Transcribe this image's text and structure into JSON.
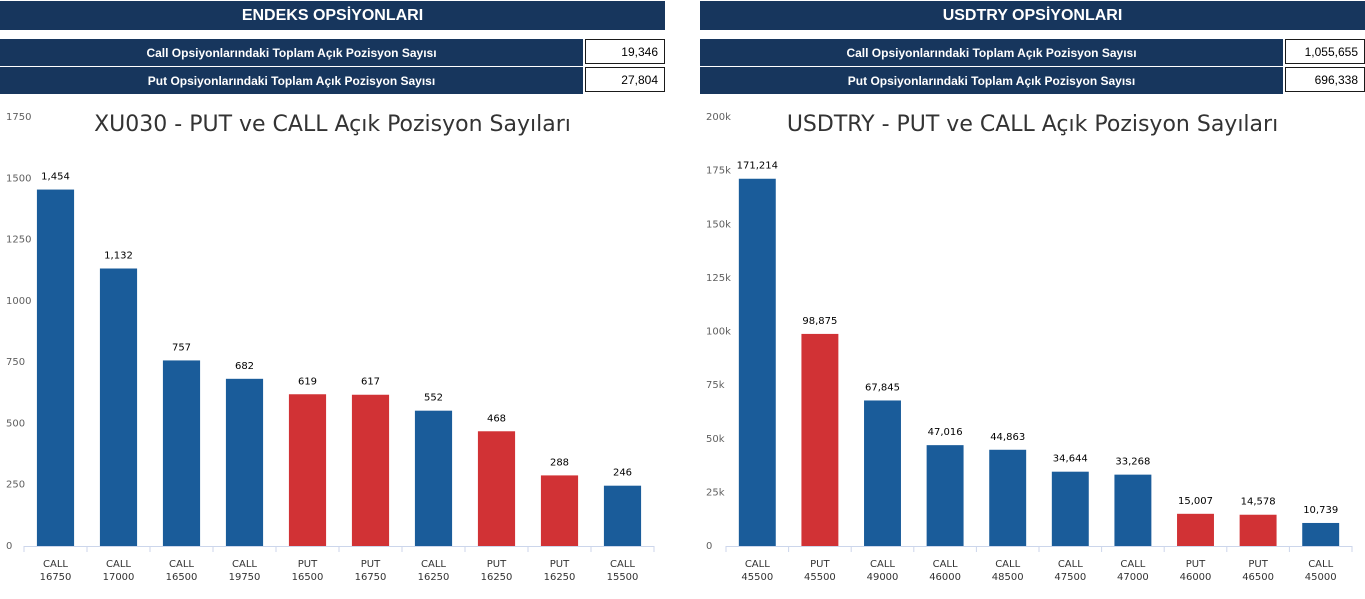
{
  "panels": {
    "left": {
      "header": "ENDEKS OPSİYONLARI",
      "summary": [
        {
          "label": "Call Opsiyonlarındaki Toplam Açık Pozisyon Sayısı",
          "value": "19,346"
        },
        {
          "label": "Put Opsiyonlarındaki Toplam Açık Pozisyon Sayısı",
          "value": "27,804"
        }
      ]
    },
    "right": {
      "header": "USDTRY OPSİYONLARI",
      "summary": [
        {
          "label": "Call Opsiyonlarındaki Toplam Açık Pozisyon Sayısı",
          "value": "1,055,655"
        },
        {
          "label": "Put Opsiyonlarındaki Toplam Açık Pozisyon Sayısı",
          "value": "696,338"
        }
      ]
    }
  },
  "colors": {
    "header_bg": "#17365d",
    "call": "#1a5c9a",
    "put": "#d13235"
  },
  "chart_data": [
    {
      "type": "bar",
      "title": "XU030 - PUT ve CALL Açık Pozisyon Sayıları",
      "categories": [
        [
          "CALL",
          "16750"
        ],
        [
          "CALL",
          "17000"
        ],
        [
          "CALL",
          "16500"
        ],
        [
          "CALL",
          "19750"
        ],
        [
          "PUT",
          "16500"
        ],
        [
          "PUT",
          "16750"
        ],
        [
          "CALL",
          "16250"
        ],
        [
          "PUT",
          "16250"
        ],
        [
          "PUT",
          "16250"
        ],
        [
          "CALL",
          "15500"
        ]
      ],
      "values": [
        1454,
        1132,
        757,
        682,
        619,
        617,
        552,
        468,
        288,
        246
      ],
      "value_labels": [
        "1,454",
        "1,132",
        "757",
        "682",
        "619",
        "617",
        "552",
        "468",
        "288",
        "246"
      ],
      "ylim": [
        0,
        1750
      ],
      "yticks": [
        0,
        250,
        500,
        750,
        1000,
        1250,
        1500,
        1750
      ],
      "ytick_labels": [
        "0",
        "250",
        "500",
        "750",
        "1000",
        "1250",
        "1500",
        "1750"
      ],
      "grid": false
    },
    {
      "type": "bar",
      "title": "USDTRY - PUT ve CALL Açık Pozisyon Sayıları",
      "categories": [
        [
          "CALL",
          "45500"
        ],
        [
          "PUT",
          "45500"
        ],
        [
          "CALL",
          "49000"
        ],
        [
          "CALL",
          "46000"
        ],
        [
          "CALL",
          "48500"
        ],
        [
          "CALL",
          "47500"
        ],
        [
          "CALL",
          "47000"
        ],
        [
          "PUT",
          "46000"
        ],
        [
          "PUT",
          "46500"
        ],
        [
          "CALL",
          "45000"
        ]
      ],
      "values": [
        171214,
        98875,
        67845,
        47016,
        44863,
        34644,
        33268,
        15007,
        14578,
        10739
      ],
      "value_labels": [
        "171,214",
        "98,875",
        "67,845",
        "47,016",
        "44,863",
        "34,644",
        "33,268",
        "15,007",
        "14,578",
        "10,739"
      ],
      "ylim": [
        0,
        200000
      ],
      "yticks": [
        0,
        25000,
        50000,
        75000,
        100000,
        125000,
        150000,
        175000,
        200000
      ],
      "ytick_labels": [
        "0",
        "25k",
        "50k",
        "75k",
        "100k",
        "125k",
        "150k",
        "175k",
        "200k"
      ],
      "grid": false
    }
  ]
}
